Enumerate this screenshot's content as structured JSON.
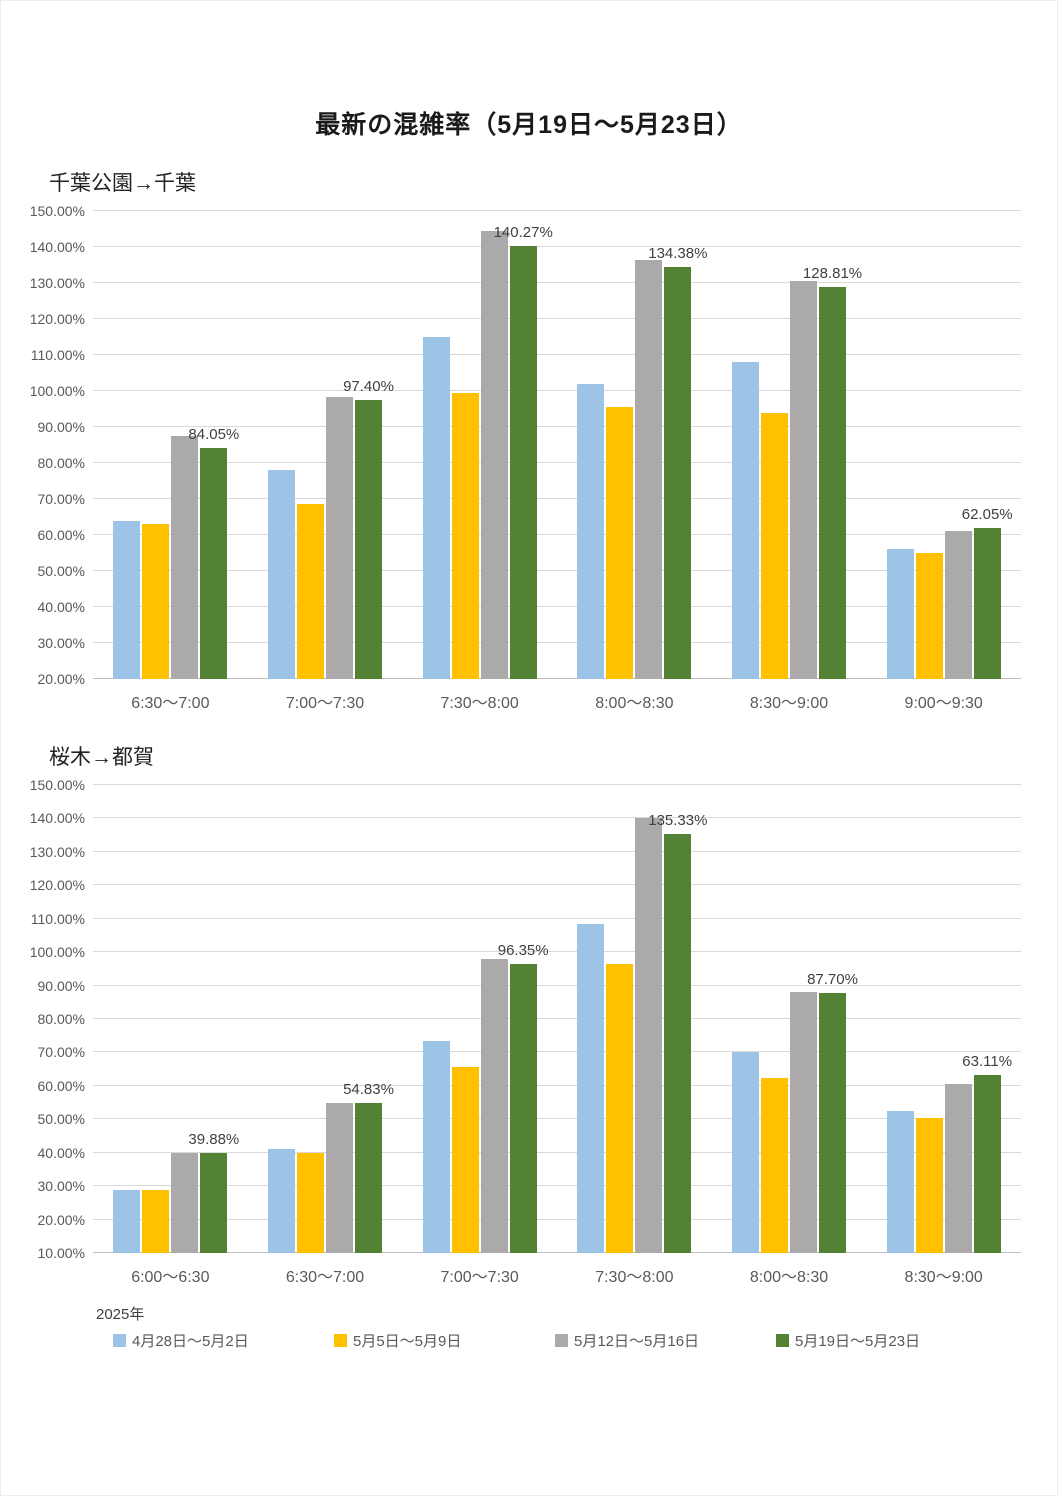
{
  "page": {
    "title": "最新の混雑率（5月19日～5月23日）",
    "year_label": "2025年"
  },
  "colors": {
    "series": [
      "#9dc3e6",
      "#ffc000",
      "#aba9a9",
      "#548235"
    ],
    "grid": "#d9d9d9",
    "axis_text": "#595959"
  },
  "legend": [
    {
      "label": "4月28日～5月2日",
      "color": "#9dc3e6"
    },
    {
      "label": "5月5日～5月9日",
      "color": "#ffc000"
    },
    {
      "label": "5月12日～5月16日",
      "color": "#aba9a9"
    },
    {
      "label": "5月19日～5月23日",
      "color": "#548235"
    }
  ],
  "chart_data": [
    {
      "type": "bar",
      "title": "千葉公園→千葉",
      "categories": [
        "6:30～7:00",
        "7:00～7:30",
        "7:30～8:00",
        "8:00～8:30",
        "8:30～9:00",
        "9:00～9:30"
      ],
      "series": [
        {
          "name": "4月28日～5月2日",
          "values": [
            64.0,
            78.0,
            115.0,
            102.0,
            108.0,
            56.0
          ]
        },
        {
          "name": "5月5日～5月9日",
          "values": [
            63.0,
            68.5,
            99.5,
            95.5,
            94.0,
            55.0
          ]
        },
        {
          "name": "5月12日～5月16日",
          "values": [
            87.5,
            98.3,
            144.5,
            136.5,
            130.5,
            61.0
          ]
        },
        {
          "name": "5月19日～5月23日",
          "values": [
            84.05,
            97.4,
            140.27,
            134.38,
            128.81,
            62.05
          ]
        }
      ],
      "data_label_series": 3,
      "data_labels": [
        "84.05%",
        "97.40%",
        "140.27%",
        "134.38%",
        "128.81%",
        "62.05%"
      ],
      "ylim": [
        20,
        150
      ],
      "ytick_step": 10,
      "grid": true,
      "legend_position": "bottom-shared"
    },
    {
      "type": "bar",
      "title": "桜木→都賀",
      "categories": [
        "6:00～6:30",
        "6:30～7:00",
        "7:00～7:30",
        "7:30～8:00",
        "8:00～8:30",
        "8:30～9:00"
      ],
      "series": [
        {
          "name": "4月28日～5月2日",
          "values": [
            29.0,
            41.0,
            73.5,
            108.5,
            70.0,
            52.5
          ]
        },
        {
          "name": "5月5日～5月9日",
          "values": [
            29.0,
            40.0,
            65.5,
            96.5,
            62.5,
            50.5
          ]
        },
        {
          "name": "5月12日～5月16日",
          "values": [
            40.0,
            55.0,
            98.0,
            140.0,
            88.0,
            60.5
          ]
        },
        {
          "name": "5月19日～5月23日",
          "values": [
            39.88,
            54.83,
            96.35,
            135.33,
            87.7,
            63.11
          ]
        }
      ],
      "data_label_series": 3,
      "data_labels": [
        "39.88%",
        "54.83%",
        "96.35%",
        "135.33%",
        "87.70%",
        "63.11%"
      ],
      "ylim": [
        10,
        150
      ],
      "ytick_step": 10,
      "grid": true,
      "legend_position": "bottom-shared"
    }
  ]
}
